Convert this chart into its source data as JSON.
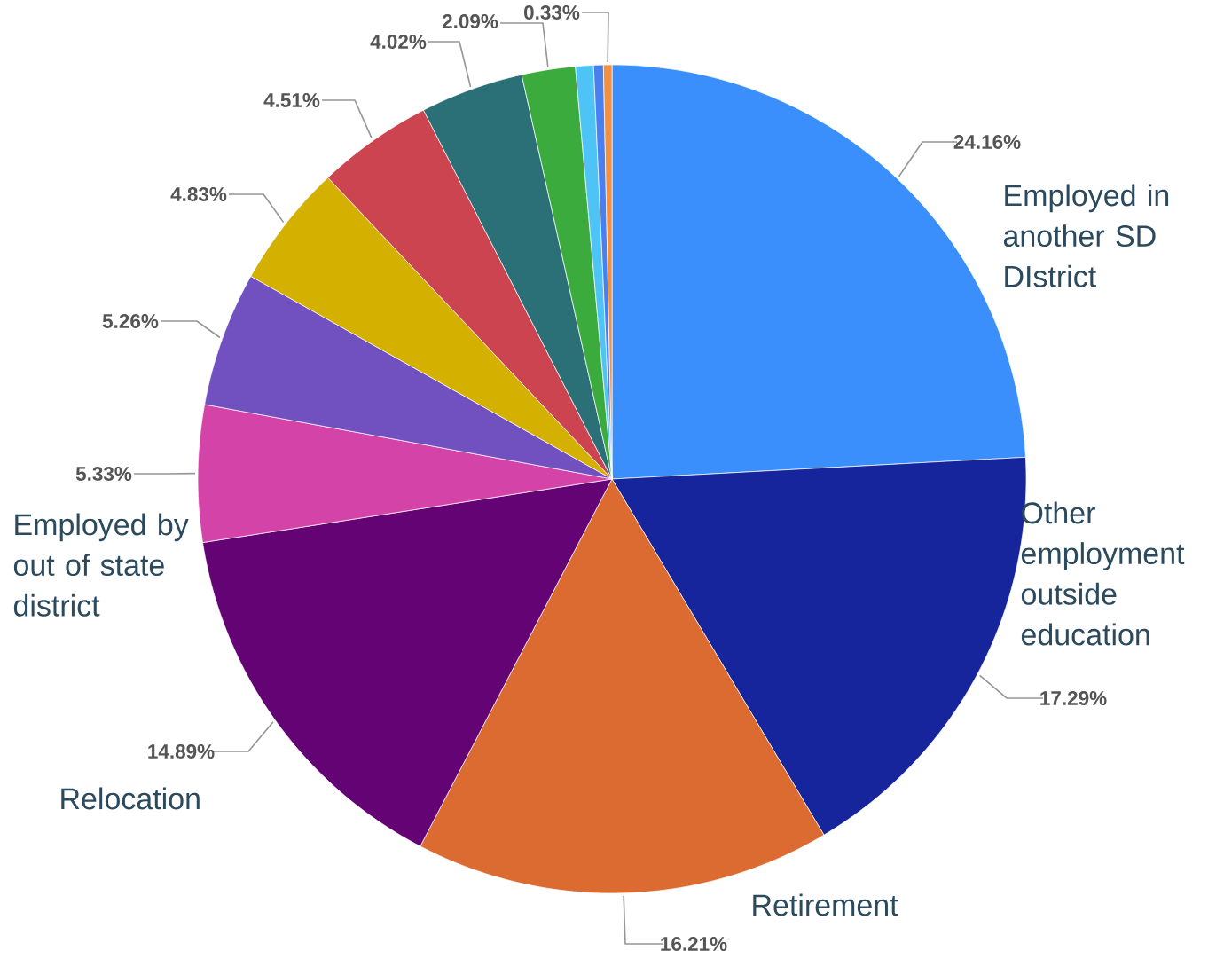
{
  "chart_data": {
    "type": "pie",
    "categories": [
      "Employed in another SD DIstrict",
      "Other employment outside education",
      "Retirement",
      "Relocation",
      "Employed by out of state district",
      null,
      null,
      null,
      null,
      null,
      null,
      null,
      null
    ],
    "values": [
      24.16,
      17.29,
      16.21,
      14.89,
      5.33,
      5.26,
      4.83,
      4.51,
      4.02,
      2.09,
      0.7,
      0.38,
      0.33
    ],
    "colors": [
      "#3a8ffd",
      "#16259b",
      "#dc6b32",
      "#640474",
      "#d444a8",
      "#7150c0",
      "#d4b000",
      "#cc4450",
      "#2b6f77",
      "#3aab3c",
      "#4ec3f5",
      "#4a7ff0",
      "#f39040"
    ],
    "value_labels": [
      "24.16%",
      "17.29%",
      "16.21%",
      "14.89%",
      "5.33%",
      "5.26%",
      "4.83%",
      "4.51%",
      "4.02%",
      "2.09%",
      null,
      null,
      "0.33%"
    ]
  }
}
